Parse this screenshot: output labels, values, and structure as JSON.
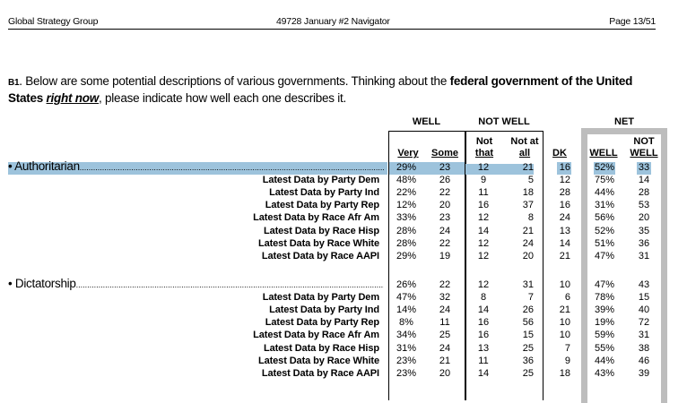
{
  "header": {
    "left": "Global Strategy Group",
    "center": "49728 January #2 Navigator",
    "right": "Page 13/51"
  },
  "question": {
    "number": "B1",
    "text_1": ". Below are some potential descriptions of various governments. Thinking about the ",
    "bold": "federal government of the United States",
    "space": " ",
    "emph": "right now",
    "text_2": ", please indicate how well each one describes it."
  },
  "groups": {
    "well": "WELL",
    "not_well": "NOT WELL",
    "net": "NET"
  },
  "columns": {
    "very": "Very",
    "some": "Some",
    "not_that_1": "Not",
    "not_that_2": "that",
    "not_at_all_1": "Not at",
    "not_at_all_2": "all",
    "dk": "DK",
    "net_well": "WELL",
    "net_not_well_1": "NOT",
    "net_not_well_2": "WELL"
  },
  "highlight_color": "#9dc3dc",
  "net_box_color": "#bdbdbd",
  "items": [
    {
      "label": "Authoritarian",
      "total": [
        "29%",
        "23",
        "12",
        "21",
        "16",
        "52%",
        "33"
      ],
      "rows": [
        {
          "label": "Latest Data by Party Dem",
          "values": [
            "48%",
            "26",
            "9",
            "5",
            "12",
            "75%",
            "14"
          ]
        },
        {
          "label": "Latest Data by Party Ind",
          "values": [
            "22%",
            "22",
            "11",
            "18",
            "28",
            "44%",
            "28"
          ]
        },
        {
          "label": "Latest Data by Party Rep",
          "values": [
            "12%",
            "20",
            "16",
            "37",
            "16",
            "31%",
            "53"
          ]
        },
        {
          "label": "Latest Data by Race Afr Am",
          "values": [
            "33%",
            "23",
            "12",
            "8",
            "24",
            "56%",
            "20"
          ]
        },
        {
          "label": "Latest Data by Race Hisp",
          "values": [
            "28%",
            "24",
            "14",
            "21",
            "13",
            "52%",
            "35"
          ]
        },
        {
          "label": "Latest Data by Race White",
          "values": [
            "28%",
            "22",
            "12",
            "24",
            "14",
            "51%",
            "36"
          ]
        },
        {
          "label": "Latest Data by Race AAPI",
          "values": [
            "29%",
            "19",
            "12",
            "20",
            "21",
            "47%",
            "31"
          ]
        }
      ]
    },
    {
      "label": "Dictatorship",
      "total": [
        "26%",
        "22",
        "12",
        "31",
        "10",
        "47%",
        "43"
      ],
      "rows": [
        {
          "label": "Latest Data by Party Dem",
          "values": [
            "47%",
            "32",
            "8",
            "7",
            "6",
            "78%",
            "15"
          ]
        },
        {
          "label": "Latest Data by Party Ind",
          "values": [
            "14%",
            "24",
            "14",
            "26",
            "21",
            "39%",
            "40"
          ]
        },
        {
          "label": "Latest Data by Party Rep",
          "values": [
            "8%",
            "11",
            "16",
            "56",
            "10",
            "19%",
            "72"
          ]
        },
        {
          "label": "Latest Data by Race Afr Am",
          "values": [
            "34%",
            "25",
            "16",
            "15",
            "10",
            "59%",
            "31"
          ]
        },
        {
          "label": "Latest Data by Race Hisp",
          "values": [
            "31%",
            "24",
            "13",
            "25",
            "7",
            "55%",
            "38"
          ]
        },
        {
          "label": "Latest Data by Race White",
          "values": [
            "23%",
            "21",
            "11",
            "36",
            "9",
            "44%",
            "46"
          ]
        },
        {
          "label": "Latest Data by Race AAPI",
          "values": [
            "23%",
            "20",
            "14",
            "25",
            "18",
            "43%",
            "39"
          ]
        }
      ]
    }
  ]
}
